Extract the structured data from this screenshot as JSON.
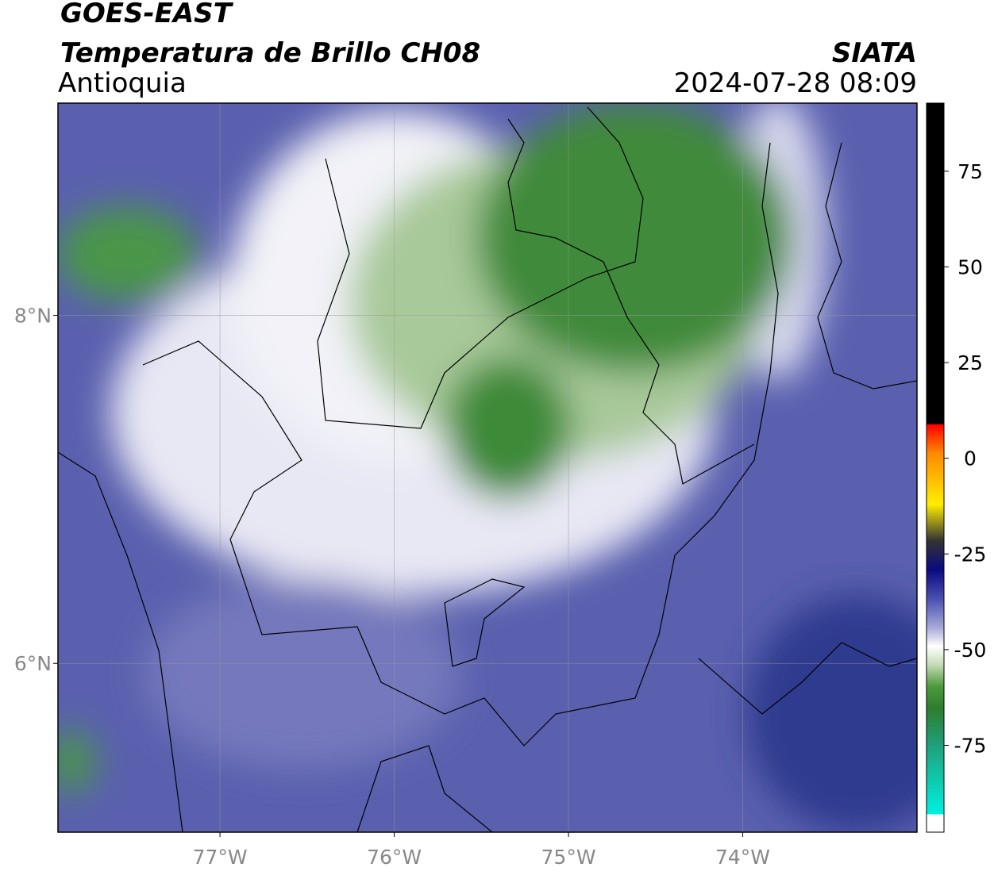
{
  "header": {
    "title": "GOES-EAST",
    "subtitle": "Temperatura de Brillo CH08",
    "region": "Antioquia",
    "source": "SIATA",
    "datetime": "2024-07-28 08:09"
  },
  "map": {
    "xlim": [
      -77.93,
      -73.0
    ],
    "ylim": [
      5.03,
      9.22
    ],
    "lon_ticks": [
      {
        "value": -77,
        "label": "77°W"
      },
      {
        "value": -76,
        "label": "76°W"
      },
      {
        "value": -75,
        "label": "75°W"
      },
      {
        "value": -74,
        "label": "74°W"
      }
    ],
    "lat_ticks": [
      {
        "value": 8,
        "label": "8°N"
      },
      {
        "value": 6,
        "label": "6°N"
      }
    ],
    "grid": true
  },
  "colorbar": {
    "lim": [
      -97.7,
      92.8
    ],
    "ticks": [
      75,
      50,
      25,
      0,
      -25,
      -50,
      -75
    ]
  }
}
